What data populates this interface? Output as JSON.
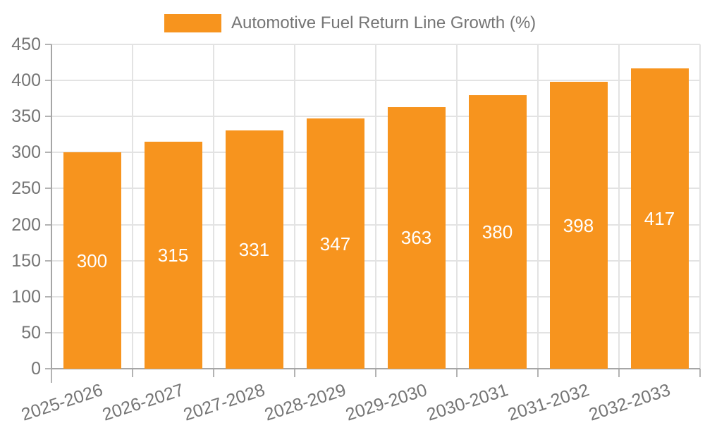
{
  "legend": {
    "label": "Automotive Fuel Return Line Growth (%)",
    "swatch_color": "#F7941E"
  },
  "chart_data": {
    "type": "bar",
    "title": "Automotive Fuel Return Line Growth (%)",
    "categories": [
      "2025-2026",
      "2026-2027",
      "2027-2028",
      "2028-2029",
      "2029-2030",
      "2030-2031",
      "2031-2032",
      "2032-2033"
    ],
    "values": [
      300,
      315,
      331,
      347,
      363,
      380,
      398,
      417
    ],
    "xlabel": "",
    "ylabel": "",
    "ylim": [
      0,
      450
    ],
    "yticks": [
      0,
      50,
      100,
      150,
      200,
      250,
      300,
      350,
      400,
      450
    ],
    "grid": true,
    "legend_position": "top",
    "value_labels": "inside-center",
    "value_label_color": "#ffffff",
    "bar_color": "#F7941E",
    "x_tick_label_rotation_deg": -18,
    "axis_text_color": "#757575",
    "grid_color": "#e3e3e3",
    "axis_line_color": "#a6a6a6",
    "tick_color": "#b3b3b3"
  }
}
